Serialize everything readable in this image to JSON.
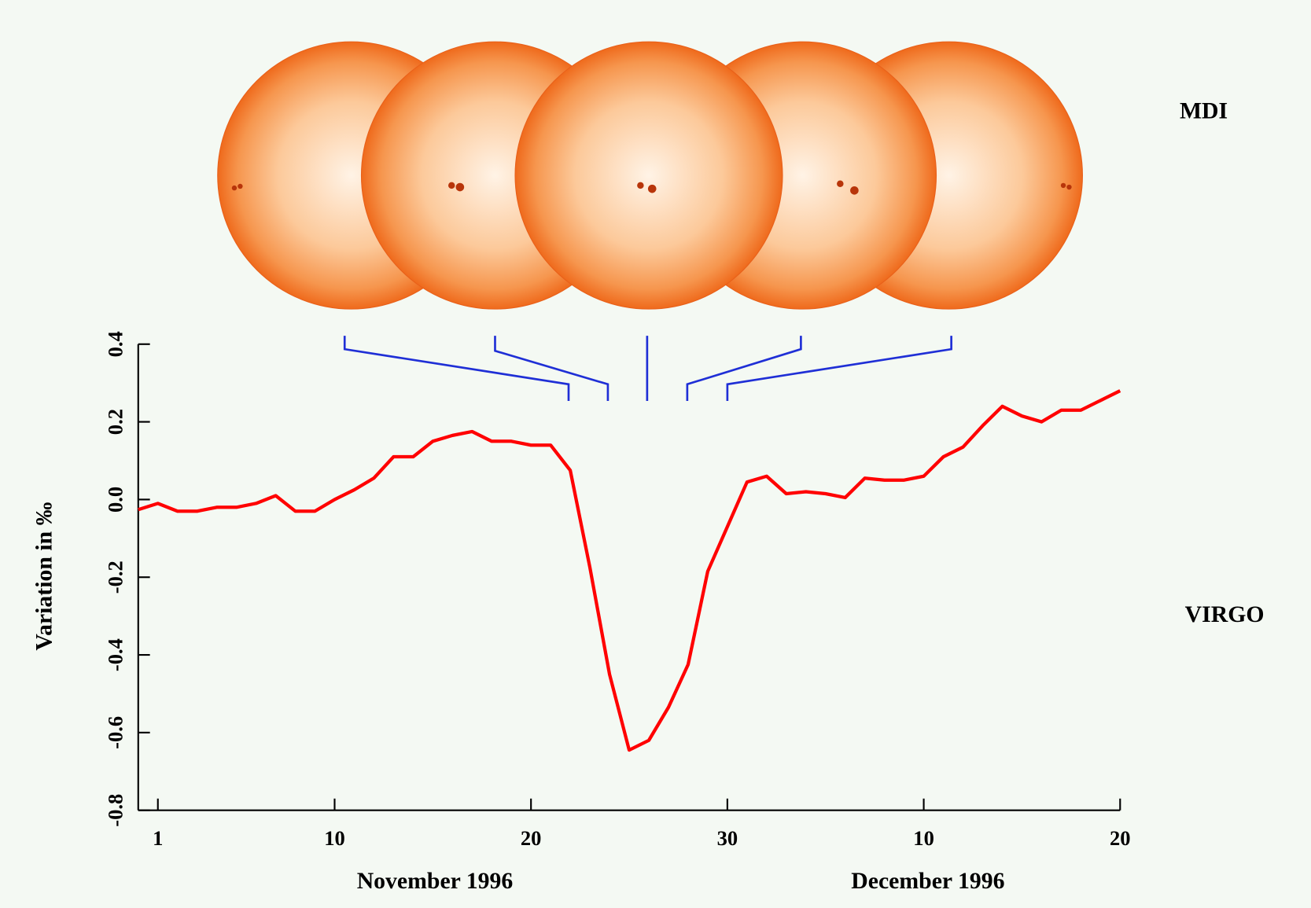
{
  "chart_data": {
    "type": "line",
    "ylabel": "Variation in ‰",
    "annotations": [
      "MDI",
      "VIRGO"
    ],
    "month_labels": [
      "November 1996",
      "December 1996"
    ],
    "color": "#ff0000",
    "x": [
      0,
      1,
      2,
      3,
      4,
      5,
      6,
      7,
      8,
      9,
      10,
      11,
      12,
      13,
      14,
      15,
      16,
      17,
      18,
      19,
      20,
      21,
      22,
      23,
      24,
      25,
      26,
      27,
      28,
      29,
      30,
      31,
      32,
      33,
      34,
      35,
      36,
      37,
      38,
      39,
      40,
      41,
      42,
      43,
      44,
      45,
      46,
      47,
      48,
      49,
      50
    ],
    "values": [
      -0.026,
      -0.01,
      -0.03,
      -0.03,
      -0.02,
      -0.02,
      -0.01,
      0.01,
      -0.03,
      -0.03,
      0.0,
      0.025,
      0.055,
      0.11,
      0.11,
      0.15,
      0.165,
      0.175,
      0.15,
      0.15,
      0.14,
      0.14,
      0.075,
      -0.175,
      -0.45,
      -0.645,
      -0.62,
      -0.535,
      -0.425,
      -0.185,
      -0.07,
      0.045,
      0.06,
      0.015,
      0.02,
      0.015,
      0.005,
      0.055,
      0.05,
      0.05,
      0.06,
      0.11,
      0.135,
      0.19,
      0.24,
      0.215,
      0.2,
      0.23,
      0.23,
      0.255,
      0.28
    ],
    "xlim": [
      0,
      50
    ],
    "xticks": [
      1,
      10,
      20,
      30,
      {
        "value": 40,
        "label": "10"
      },
      {
        "value": 50,
        "label": "20"
      }
    ],
    "ylim": [
      -0.8,
      0.4
    ],
    "yticks": [
      -0.8,
      -0.6,
      -0.4,
      -0.2,
      {
        "value": 0,
        "label": "0.0"
      },
      0.2,
      0.4
    ]
  }
}
